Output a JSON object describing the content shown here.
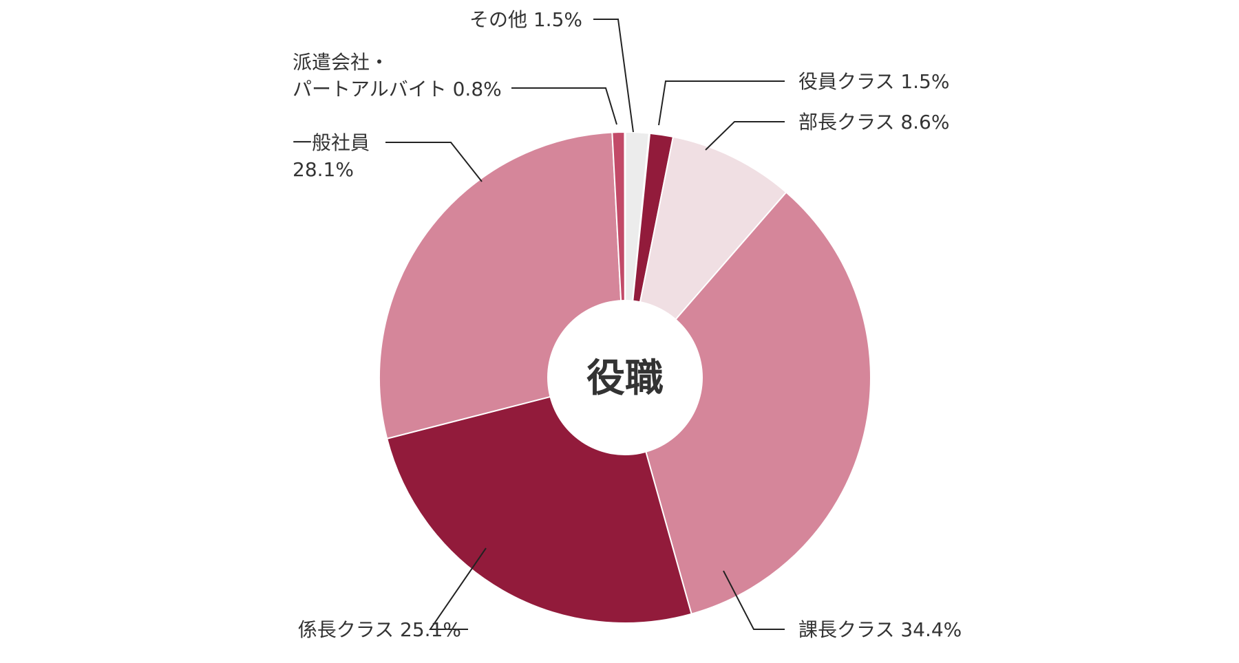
{
  "chart_data": {
    "type": "pie",
    "center_label": "役職",
    "center_label_color": "#921b3b",
    "slices": [
      {
        "name": "役員クラス",
        "value": 1.5,
        "color": "#921b3b",
        "label": [
          "役員クラス 1.5%"
        ]
      },
      {
        "name": "部長クラス",
        "value": 8.6,
        "color": "#f0dfe3",
        "label": [
          "部長クラス 8.6%"
        ]
      },
      {
        "name": "課長クラス",
        "value": 34.4,
        "color": "#d5869a",
        "label": [
          "課長クラス 34.4%"
        ]
      },
      {
        "name": "係長クラス",
        "value": 25.1,
        "color": "#921b3b",
        "label": [
          "係長クラス 25.1%"
        ]
      },
      {
        "name": "一般社員",
        "value": 28.1,
        "color": "#d5869a",
        "label": [
          "一般社員",
          "28.1%"
        ]
      },
      {
        "name": "派遣会社・パートアルバイト",
        "value": 0.8,
        "color": "#c24a68",
        "label": [
          "派遣会社・",
          "パートアルバイト 0.8%"
        ]
      },
      {
        "name": "その他",
        "value": 1.5,
        "color": "#ececec",
        "label": [
          "その他 1.5%"
        ]
      }
    ]
  }
}
